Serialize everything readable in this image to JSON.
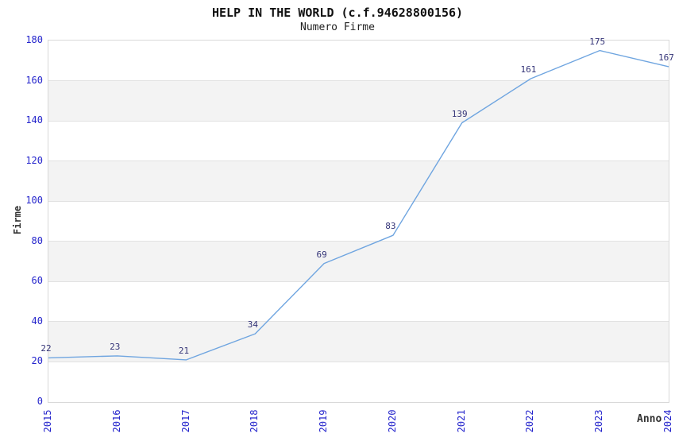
{
  "chart_data": {
    "type": "line",
    "title": "HELP IN THE WORLD (c.f.94628800156)",
    "subtitle": "Numero Firme",
    "xlabel": "Anno",
    "ylabel": "Firme",
    "x": [
      2015,
      2016,
      2017,
      2018,
      2019,
      2020,
      2021,
      2022,
      2023,
      2024
    ],
    "series": [
      {
        "name": "Numero Firme",
        "values": [
          22,
          23,
          21,
          34,
          69,
          83,
          139,
          161,
          175,
          167
        ]
      }
    ],
    "ylim": [
      0,
      180
    ],
    "ytick_step": 20,
    "grid": "horizontal",
    "legend": "none",
    "data_labels_visible": true,
    "x_tick_rotation": -90,
    "colors": {
      "line": "#6fa5e0",
      "tick_label": "#2424cc",
      "data_label": "#333377",
      "band_fill": "#f3f3f3",
      "grid_line": "#e2e2e2",
      "plot_border": "#d8d8d8",
      "axis_title": "#333333",
      "title_text": "#111111",
      "background": "#ffffff"
    }
  }
}
